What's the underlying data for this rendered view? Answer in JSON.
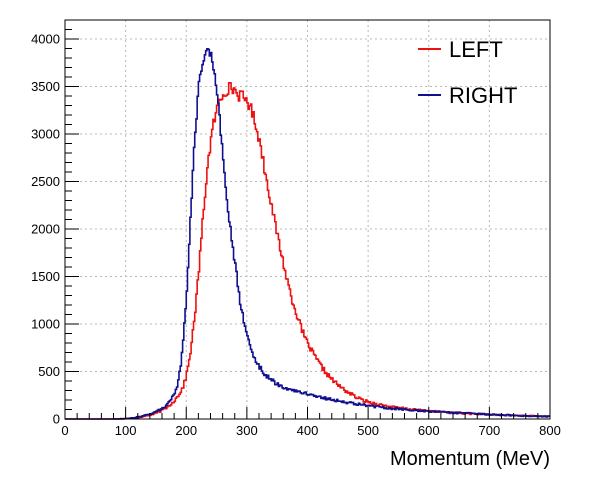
{
  "chart_data": {
    "type": "line",
    "title": "",
    "xlabel": "Momentum  (MeV)",
    "ylabel": "",
    "xlim": [
      0,
      800
    ],
    "ylim": [
      0,
      4200
    ],
    "x_ticks": [
      0,
      100,
      200,
      300,
      400,
      500,
      600,
      700,
      800
    ],
    "y_ticks": [
      0,
      500,
      1000,
      1500,
      2000,
      2500,
      3000,
      3500,
      4000
    ],
    "grid": true,
    "legend_position": "top-right",
    "colors": {
      "LEFT": "#ee1111",
      "RIGHT": "#10108f",
      "grid": "#b8b8b8"
    },
    "series": [
      {
        "name": "LEFT",
        "x": [
          0,
          40,
          80,
          100,
          120,
          140,
          150,
          160,
          170,
          180,
          185,
          190,
          195,
          200,
          205,
          210,
          215,
          220,
          225,
          230,
          235,
          240,
          245,
          250,
          255,
          260,
          265,
          270,
          275,
          280,
          285,
          290,
          295,
          300,
          305,
          310,
          315,
          320,
          325,
          330,
          335,
          340,
          345,
          350,
          355,
          360,
          365,
          370,
          375,
          380,
          385,
          390,
          395,
          400,
          410,
          420,
          430,
          440,
          450,
          460,
          470,
          480,
          490,
          500,
          520,
          540,
          560,
          580,
          600,
          620,
          640,
          660,
          680,
          700,
          720,
          740,
          760,
          780,
          800
        ],
        "values": [
          0,
          0,
          0,
          3,
          15,
          40,
          60,
          90,
          130,
          190,
          230,
          280,
          340,
          450,
          620,
          850,
          1150,
          1500,
          1900,
          2300,
          2650,
          2900,
          3100,
          3250,
          3350,
          3420,
          3460,
          3480,
          3490,
          3460,
          3420,
          3400,
          3380,
          3350,
          3300,
          3200,
          3100,
          2950,
          2800,
          2600,
          2450,
          2280,
          2100,
          1950,
          1800,
          1650,
          1500,
          1380,
          1250,
          1150,
          1050,
          950,
          870,
          800,
          680,
          580,
          490,
          420,
          360,
          310,
          270,
          230,
          200,
          180,
          150,
          125,
          110,
          95,
          85,
          75,
          65,
          58,
          52,
          46,
          42,
          38,
          35,
          30,
          25
        ]
      },
      {
        "name": "RIGHT",
        "x": [
          0,
          40,
          80,
          100,
          120,
          140,
          150,
          160,
          170,
          175,
          180,
          185,
          190,
          195,
          200,
          205,
          210,
          215,
          220,
          225,
          230,
          235,
          240,
          245,
          250,
          255,
          260,
          265,
          270,
          275,
          280,
          285,
          290,
          295,
          300,
          305,
          310,
          315,
          320,
          325,
          330,
          340,
          350,
          360,
          370,
          380,
          390,
          400,
          410,
          420,
          430,
          440,
          450,
          460,
          470,
          480,
          490,
          500,
          520,
          540,
          560,
          580,
          600,
          620,
          640,
          660,
          680,
          700,
          720,
          740,
          760,
          780,
          800
        ],
        "values": [
          0,
          0,
          0,
          3,
          20,
          50,
          75,
          110,
          160,
          200,
          260,
          350,
          520,
          800,
          1250,
          1850,
          2500,
          3050,
          3450,
          3700,
          3850,
          3900,
          3850,
          3700,
          3450,
          3150,
          2800,
          2450,
          2150,
          1900,
          1650,
          1420,
          1200,
          1030,
          890,
          780,
          690,
          620,
          560,
          510,
          470,
          410,
          370,
          340,
          315,
          295,
          280,
          265,
          250,
          235,
          220,
          205,
          190,
          180,
          170,
          160,
          150,
          140,
          125,
          110,
          100,
          90,
          82,
          74,
          67,
          60,
          54,
          48,
          43,
          38,
          34,
          30,
          26
        ]
      }
    ]
  }
}
